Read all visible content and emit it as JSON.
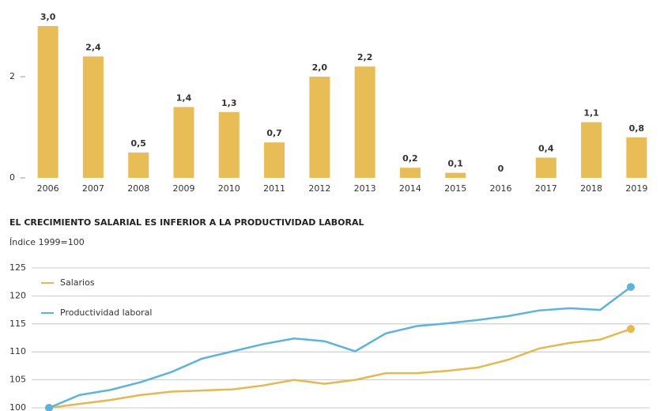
{
  "chart_data": [
    {
      "type": "bar",
      "categories": [
        "2006",
        "2007",
        "2008",
        "2009",
        "2010",
        "2011",
        "2012",
        "2013",
        "2014",
        "2015",
        "2016",
        "2017",
        "2018",
        "2019"
      ],
      "values": [
        3.0,
        2.4,
        0.5,
        1.4,
        1.3,
        0.7,
        2.0,
        2.2,
        0.2,
        0.1,
        0,
        0.4,
        1.1,
        0.8
      ],
      "value_labels": [
        "3,0",
        "2,4",
        "0,5",
        "1,4",
        "1,3",
        "0,7",
        "2,0",
        "2,2",
        "0,2",
        "0,1",
        "0",
        "0,4",
        "1,1",
        "0,8"
      ],
      "color": "#e9bd55",
      "ylim": [
        0,
        3.5
      ],
      "yticks": [
        0,
        2
      ],
      "grid": false
    },
    {
      "type": "line",
      "title": "EL CRECIMIENTO SALARIAL ES INFERIOR A LA PRODUCTIVIDAD LABORAL",
      "subtitle": "Índice 1999=100",
      "series": [
        {
          "name": "Salarios",
          "color": "#e8b84a",
          "values": [
            100,
            100.7,
            101.4,
            102.3,
            102.9,
            103.1,
            103.3,
            104,
            105,
            104.3,
            105,
            106.2,
            106.2,
            106.6,
            107.2,
            108.6,
            110.6,
            111.6,
            112.2,
            114.1
          ]
        },
        {
          "name": "Productividad laboral",
          "color": "#5ab4e0",
          "values": [
            100,
            102.3,
            103.2,
            104.6,
            106.4,
            108.8,
            110.1,
            111.4,
            112.4,
            111.9,
            110.1,
            113.3,
            114.6,
            115.1,
            115.7,
            116.4,
            117.4,
            117.8,
            117.5,
            121.6
          ]
        }
      ],
      "ylim": [
        100,
        125
      ],
      "yticks": [
        100,
        105,
        110,
        115,
        120,
        125
      ],
      "grid": true,
      "legend": "top-left"
    }
  ]
}
